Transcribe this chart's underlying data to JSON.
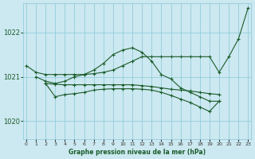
{
  "bg_color": "#cce8f0",
  "grid_color": "#88c8d8",
  "line_color": "#1a5c2a",
  "title": "Graphe pression niveau de la mer (hPa)",
  "xlim": [
    -0.3,
    23.3
  ],
  "ylim": [
    1019.6,
    1022.65
  ],
  "yticks": [
    1020,
    1021,
    1022
  ],
  "xticks": [
    0,
    1,
    2,
    3,
    4,
    5,
    6,
    7,
    8,
    9,
    10,
    11,
    12,
    13,
    14,
    15,
    16,
    17,
    18,
    19,
    20,
    21,
    22,
    23
  ],
  "series": [
    {
      "x": [
        0,
        1,
        2,
        3,
        4,
        5,
        6,
        7,
        8,
        9,
        10,
        11,
        12,
        13,
        14,
        15,
        16,
        17,
        18,
        19,
        20,
        21,
        22,
        23
      ],
      "y": [
        1021.25,
        1021.1,
        1021.05,
        1021.05,
        1021.05,
        1021.05,
        1021.05,
        1021.07,
        1021.1,
        1021.15,
        1021.25,
        1021.35,
        1021.45,
        1021.45,
        1021.45,
        1021.45,
        1021.45,
        1021.45,
        1021.45,
        1021.45,
        1021.1,
        1021.45,
        1021.85,
        1022.55
      ]
    },
    {
      "x": [
        1,
        2,
        3,
        4,
        5,
        6,
        7,
        8,
        9,
        10,
        11,
        12,
        13,
        14,
        15,
        16,
        17,
        18,
        19,
        20
      ],
      "y": [
        1021.0,
        1020.9,
        1020.85,
        1020.9,
        1021.0,
        1021.05,
        1021.15,
        1021.3,
        1021.5,
        1021.6,
        1021.65,
        1021.55,
        1021.35,
        1021.05,
        1020.95,
        1020.75,
        1020.65,
        1020.55,
        1020.45,
        1020.45
      ]
    },
    {
      "x": [
        2,
        3,
        4,
        5,
        6,
        7,
        8,
        9,
        10,
        11,
        12,
        13,
        14,
        15,
        16,
        17,
        18,
        19,
        20
      ],
      "y": [
        1020.85,
        1020.83,
        1020.82,
        1020.82,
        1020.82,
        1020.82,
        1020.82,
        1020.82,
        1020.82,
        1020.82,
        1020.8,
        1020.78,
        1020.75,
        1020.72,
        1020.7,
        1020.68,
        1020.65,
        1020.62,
        1020.6
      ]
    },
    {
      "x": [
        2,
        3,
        4,
        5,
        6,
        7,
        8,
        9,
        10,
        11,
        12,
        13,
        14,
        15,
        16,
        17,
        18,
        19,
        20
      ],
      "y": [
        1020.85,
        1020.55,
        1020.6,
        1020.62,
        1020.65,
        1020.7,
        1020.72,
        1020.73,
        1020.73,
        1020.73,
        1020.72,
        1020.7,
        1020.65,
        1020.58,
        1020.5,
        1020.42,
        1020.32,
        1020.22,
        1020.45
      ]
    }
  ]
}
